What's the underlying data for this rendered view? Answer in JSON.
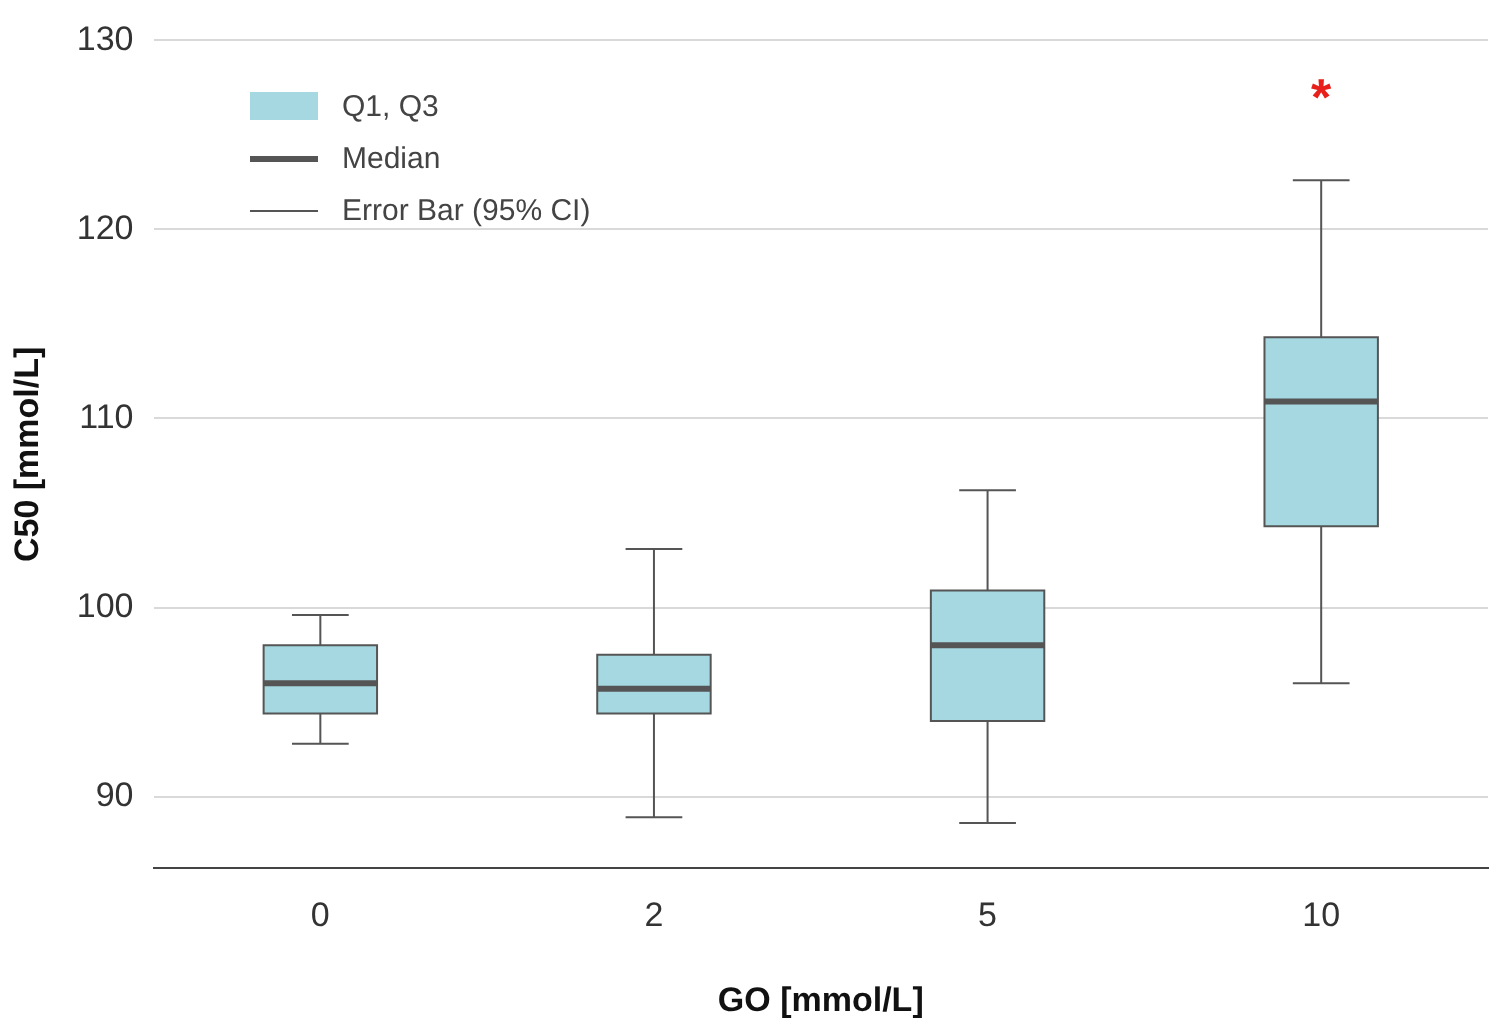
{
  "chart_data": {
    "type": "box",
    "xlabel": "GO [mmol/L]",
    "ylabel": "C50 [mmol/L]",
    "categories": [
      "0",
      "2",
      "5",
      "10"
    ],
    "series": [
      {
        "name": "Q1, Q3",
        "color": "#a6d8e2",
        "boxes": [
          {
            "low": 92.8,
            "q1": 94.4,
            "median": 96.0,
            "q3": 98.0,
            "high": 99.6
          },
          {
            "low": 88.9,
            "q1": 94.4,
            "median": 95.7,
            "q3": 97.5,
            "high": 103.1
          },
          {
            "low": 88.6,
            "q1": 94.0,
            "median": 98.0,
            "q3": 100.9,
            "high": 106.2
          },
          {
            "low": 96.0,
            "q1": 104.3,
            "median": 110.9,
            "q3": 114.3,
            "high": 122.6
          }
        ]
      }
    ],
    "ylim": [
      86.2,
      130
    ],
    "yticks": [
      90,
      100,
      110,
      120,
      130
    ],
    "grid": "y",
    "legend": "top left",
    "annotations": [
      "Median",
      "Error Bar (95% CI)",
      "*"
    ]
  }
}
